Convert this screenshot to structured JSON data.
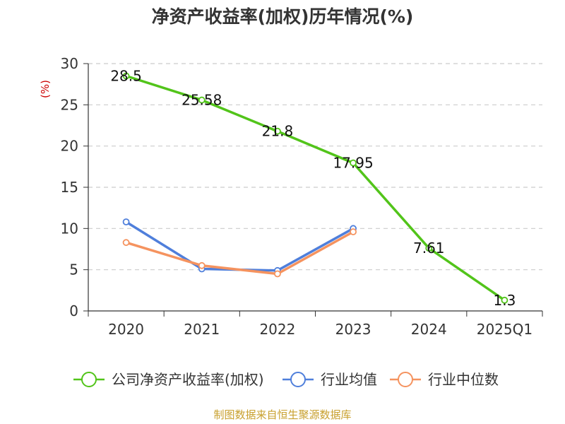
{
  "colors": {
    "company": "#52c41a",
    "industry_avg": "#4f7fdb",
    "industry_median": "#f5935f",
    "title": "#333333",
    "ylabel": "#cc0000",
    "grid": "#cccccc",
    "source": "#c8a02e"
  },
  "chart_data": {
    "type": "line",
    "title": "净资产收益率(加权)历年情况(%)",
    "ylabel": "(%)",
    "xlabel": "",
    "categories": [
      "2020",
      "2021",
      "2022",
      "2023",
      "2024",
      "2025Q1"
    ],
    "ylim": [
      0,
      30
    ],
    "yticks": [
      0,
      5,
      10,
      15,
      20,
      25,
      30
    ],
    "grid": "horizontal dashed",
    "legend_position": "bottom",
    "series": [
      {
        "name": "公司净资产收益率(加权)",
        "color": "#52c41a",
        "values": [
          28.5,
          25.58,
          21.8,
          17.95,
          7.61,
          1.3
        ],
        "labels": [
          "28.5",
          "25.58",
          "21.8",
          "17.95",
          "7.61",
          "1.3"
        ]
      },
      {
        "name": "行业均值",
        "color": "#4f7fdb",
        "values": [
          10.8,
          5.1,
          4.9,
          10.0,
          null,
          null
        ]
      },
      {
        "name": "行业中位数",
        "color": "#f5935f",
        "values": [
          8.3,
          5.5,
          4.5,
          9.6,
          null,
          null
        ]
      }
    ]
  },
  "source": "制图数据来自恒生聚源数据库"
}
